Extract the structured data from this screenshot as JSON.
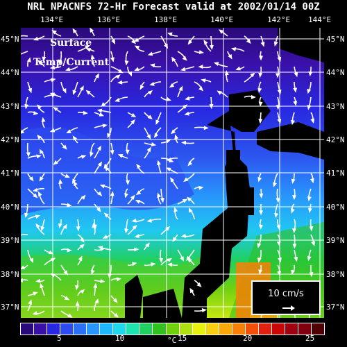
{
  "title": "NRL NPACNFS 72-Hr Forecast valid at 2002/01/14 00Z",
  "map_label": {
    "line1": "Surface",
    "line2": "Temp/Current"
  },
  "lon_ticks": [
    "134°E",
    "136°E",
    "138°E",
    "140°E",
    "142°E",
    "144°E"
  ],
  "lat_ticks": [
    "45°N",
    "44°N",
    "43°N",
    "42°N",
    "41°N",
    "40°N",
    "39°N",
    "38°N",
    "37°N"
  ],
  "scale": {
    "label": "10 cm/s"
  },
  "colorbar": {
    "unit": "°C",
    "tick_labels": [
      "5",
      "10",
      "15",
      "20",
      "25"
    ],
    "colors": [
      "#2a0a7a",
      "#3a10a8",
      "#2828e0",
      "#2c4cf0",
      "#2c70f8",
      "#2896fc",
      "#20b8fc",
      "#20d8ec",
      "#20e4b0",
      "#20d060",
      "#30c020",
      "#70d010",
      "#b0e010",
      "#e8f010",
      "#f8d010",
      "#f8a808",
      "#f88008",
      "#f05008",
      "#e02010",
      "#c80808",
      "#a00010",
      "#800010",
      "#500000"
    ]
  },
  "map_colors": {
    "land": "#000000",
    "grid": "#ffffff",
    "arrow": "#ffffff"
  }
}
